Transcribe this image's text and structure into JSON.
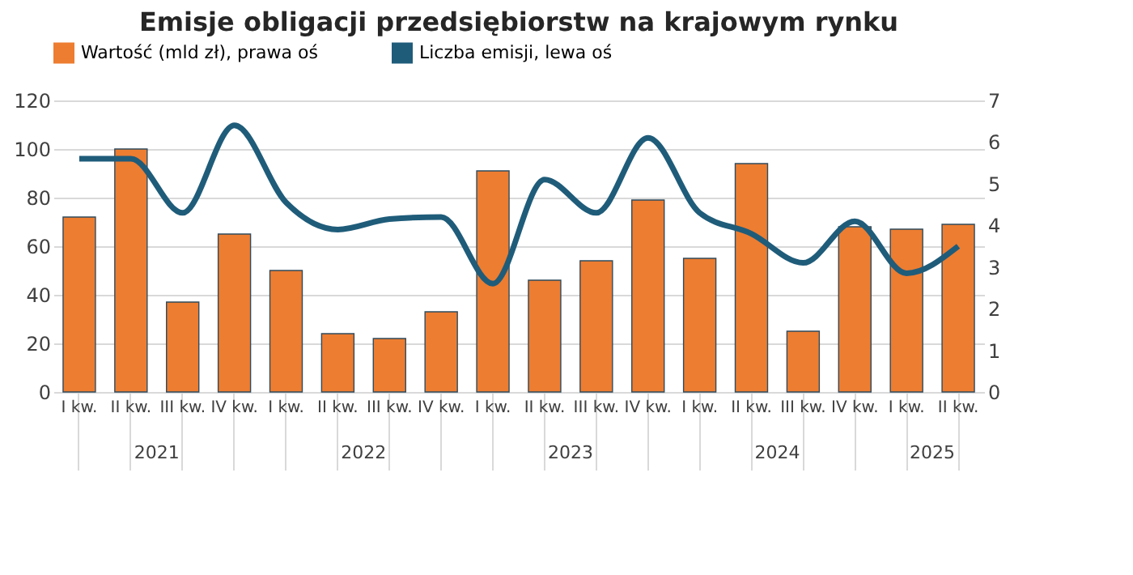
{
  "chart_data": {
    "type": "bar",
    "title": "Emisje obligacji przedsiębiorstw na krajowym rynku",
    "categories": [
      "I kw.",
      "II kw.",
      "III kw.",
      "IV kw.",
      "I kw.",
      "II kw.",
      "III kw.",
      "IV kw.",
      "I kw.",
      "II kw.",
      "III kw.",
      "IV kw.",
      "I kw.",
      "II kw.",
      "III kw.",
      "IV kw.",
      "I kw.",
      "II kw."
    ],
    "series": [
      {
        "name": "Wartość (mld zł), prawa oś",
        "color": "#ed7d31",
        "values": [
          72,
          100,
          37,
          65,
          50,
          24,
          22,
          33,
          91,
          46,
          54,
          79,
          55,
          94,
          25,
          68,
          67,
          69
        ]
      },
      {
        "name": "Liczba emisji, lewa oś",
        "type": "line",
        "axis": "y2",
        "color": "#1f5c7a",
        "values": [
          5.6,
          5.6,
          4.3,
          6.4,
          4.55,
          3.9,
          4.15,
          4.2,
          2.6,
          5.1,
          4.3,
          6.1,
          4.3,
          3.8,
          3.1,
          4.1,
          2.85,
          3.5
        ]
      }
    ],
    "annotations": [
      "2021",
      "2022",
      "2023",
      "2024",
      "2025"
    ],
    "ylim": [
      0,
      120
    ],
    "yticks": [
      0,
      20,
      40,
      60,
      80,
      100,
      120
    ],
    "y2lim": [
      0,
      7
    ],
    "y2ticks": [
      0,
      1,
      2,
      3,
      4,
      5,
      6,
      7
    ],
    "grid": "y",
    "legend": "top",
    "marker": "none",
    "line_style": "solid"
  }
}
